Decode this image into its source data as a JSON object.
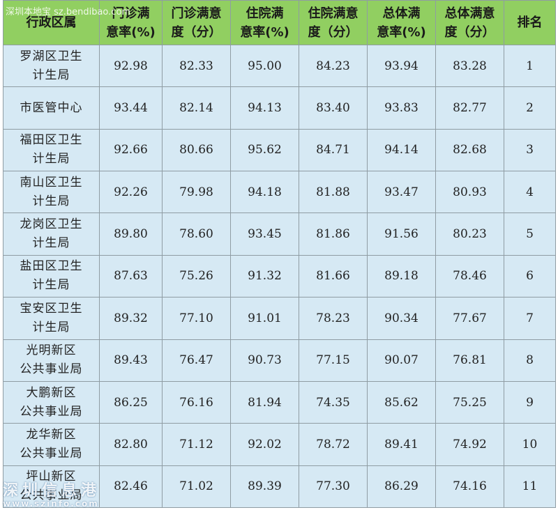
{
  "headers": [
    [
      "行政区属"
    ],
    [
      "门诊满",
      "意率(%)"
    ],
    [
      "门诊满意",
      "度（分）"
    ],
    [
      "住院满",
      "意率(%)"
    ],
    [
      "住院满意",
      "度（分）"
    ],
    [
      "总体满",
      "意率(%)"
    ],
    [
      "总体满意",
      "度（分）"
    ],
    [
      "排名"
    ]
  ],
  "rows": [
    {
      "district": [
        "罗湖区卫生",
        "计生局"
      ],
      "values": [
        "92.98",
        "82.33",
        "95.00",
        "84.23",
        "93.94",
        "83.28",
        "1"
      ]
    },
    {
      "district": [
        "市医管中心"
      ],
      "values": [
        "93.44",
        "82.14",
        "94.13",
        "83.40",
        "93.83",
        "82.77",
        "2"
      ]
    },
    {
      "district": [
        "福田区卫生",
        "计生局"
      ],
      "values": [
        "92.66",
        "80.66",
        "95.62",
        "84.71",
        "94.14",
        "82.68",
        "3"
      ]
    },
    {
      "district": [
        "南山区卫生",
        "计生局"
      ],
      "values": [
        "92.26",
        "79.98",
        "94.18",
        "81.88",
        "93.47",
        "80.93",
        "4"
      ]
    },
    {
      "district": [
        "龙岗区卫生",
        "计生局"
      ],
      "values": [
        "89.80",
        "78.60",
        "93.45",
        "81.86",
        "91.56",
        "80.23",
        "5"
      ]
    },
    {
      "district": [
        "盐田区卫生",
        "计生局"
      ],
      "values": [
        "87.63",
        "75.26",
        "91.32",
        "81.66",
        "89.18",
        "78.46",
        "6"
      ]
    },
    {
      "district": [
        "宝安区卫生",
        "计生局"
      ],
      "values": [
        "89.32",
        "77.10",
        "91.01",
        "78.23",
        "90.34",
        "77.67",
        "7"
      ]
    },
    {
      "district": [
        "光明新区",
        "公共事业局"
      ],
      "values": [
        "89.43",
        "76.47",
        "90.73",
        "77.15",
        "90.07",
        "76.81",
        "8"
      ]
    },
    {
      "district": [
        "大鹏新区",
        "公共事业局"
      ],
      "values": [
        "86.25",
        "76.16",
        "81.94",
        "74.35",
        "85.62",
        "75.25",
        "9"
      ]
    },
    {
      "district": [
        "龙华新区",
        "公共事业局"
      ],
      "values": [
        "82.80",
        "71.12",
        "92.02",
        "78.72",
        "89.41",
        "74.92",
        "10"
      ]
    },
    {
      "district": [
        "坪山新区",
        "公共事业局"
      ],
      "values": [
        "82.46",
        "71.02",
        "89.39",
        "77.30",
        "86.29",
        "74.16",
        "11"
      ]
    }
  ],
  "watermarks": {
    "top": "深圳本地宝  sz.bendibao.com",
    "bottom_name": "深圳信息港",
    "bottom_url": "www.szinfo.com"
  },
  "colors": {
    "header_bg": "#91cf61",
    "cell_bg": "#d6e9f4",
    "border": "#8f9ca3"
  }
}
